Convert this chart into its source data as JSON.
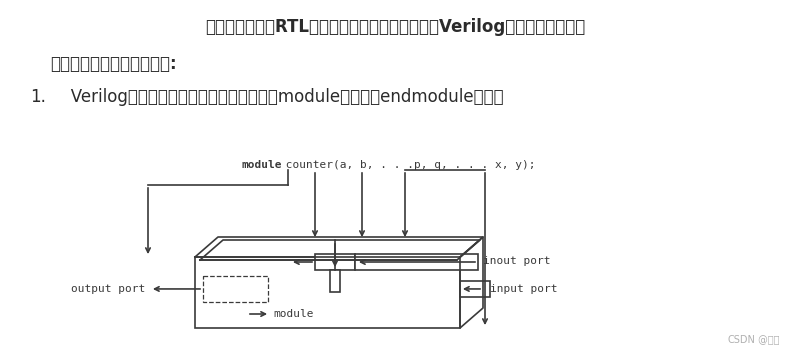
{
  "bg_color": "#ffffff",
  "text_line1": "这是一个典型的RTL代码，从这个例子中可以看出Verilog语言的基本语法结",
  "text_line2": "构，现对主要内容进行总结:",
  "text_line3_num": "1.",
  "text_line3_body": "   Verilog代码的基本单位是模块，以保留字module开始，以endmodule结束；",
  "module_kw": "module",
  "module_rest": " counter(a, b, . . .p, q, . . . x, y);",
  "inout_label": "inout port",
  "output_label": "output port",
  "input_label": "input port",
  "module_text": "module",
  "watermark1": "CSDN",
  "watermark2": " @移知",
  "font_color": "#2b2b2b",
  "diagram_color": "#3a3a3a",
  "watermark_color": "#b0b0b0"
}
